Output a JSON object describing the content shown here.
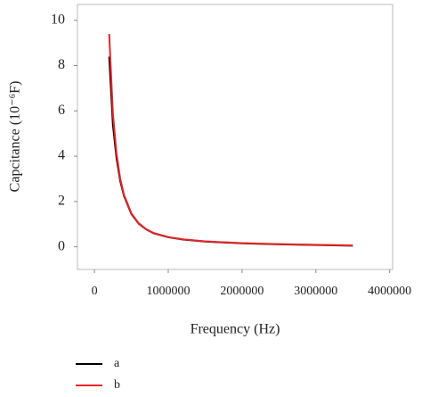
{
  "chart_data": {
    "type": "line",
    "x_label": "Frequency (Hz)",
    "y_label": "Capcitance (10⁻⁶F)",
    "x": [
      200000,
      250000,
      300000,
      350000,
      400000,
      500000,
      600000,
      700000,
      800000,
      1000000,
      1200000,
      1500000,
      2000000,
      2500000,
      3000000,
      3500000
    ],
    "series": [
      {
        "name": "a",
        "color": "#000000",
        "values": [
          8.4,
          5.4,
          3.9,
          2.9,
          2.25,
          1.45,
          1.02,
          0.77,
          0.6,
          0.42,
          0.32,
          0.23,
          0.15,
          0.11,
          0.08,
          0.05
        ]
      },
      {
        "name": "b",
        "color": "#e8262a",
        "values": [
          9.4,
          5.9,
          4.1,
          3.0,
          2.3,
          1.48,
          1.04,
          0.78,
          0.61,
          0.43,
          0.33,
          0.24,
          0.16,
          0.12,
          0.09,
          0.06
        ]
      }
    ],
    "xlim": [
      -230000,
      4040000
    ],
    "xticks": [
      0,
      1000000,
      2000000,
      3000000,
      4000000
    ],
    "ylim": [
      -1,
      10.7
    ],
    "yticks": [
      0,
      2,
      4,
      6,
      8,
      10
    ]
  }
}
